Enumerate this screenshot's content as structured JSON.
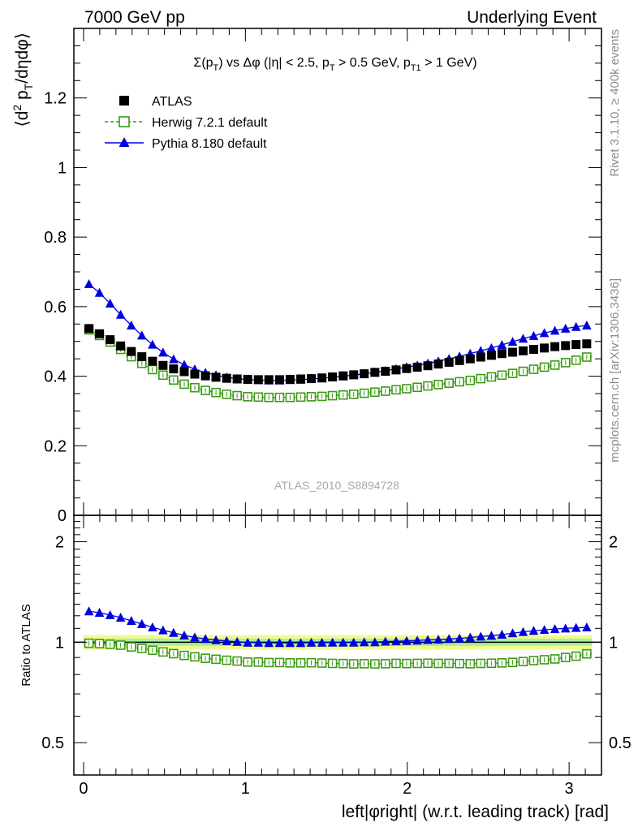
{
  "header": {
    "left": "7000 GeV pp",
    "right": "Underlying Event"
  },
  "side_labels": {
    "rivet": "Rivet 3.1.10, ≥ 400k events",
    "mcplots": "mcplots.cern.ch [arXiv:1306.3436]"
  },
  "watermark": "ATLAS_2010_S8894728",
  "colors": {
    "atlas": "#000000",
    "herwig": "#3a9a14",
    "pythia": "#0000dd",
    "band_outer": "#f2fb8a",
    "band_inner": "#a6f0a2"
  },
  "chart_data": [
    {
      "type": "scatter",
      "panel": "main",
      "title": "Σ(p_T) vs Δφ (|η| < 2.5, p_T > 0.5 GeV, p_T1 > 1 GeV)",
      "xlabel": "left|φright| (w.r.t. leading track) [rad]",
      "ylabel": "⟨d² p_T/dηdφ⟩",
      "xlim": [
        -0.06,
        3.2
      ],
      "ylim": [
        0,
        1.4
      ],
      "yticks": [
        0,
        0.2,
        0.4,
        0.6,
        0.8,
        1,
        1.2
      ],
      "xticks": [
        0,
        1,
        2,
        3
      ],
      "legend_position": "top-left",
      "x": [
        0.033,
        0.098,
        0.164,
        0.229,
        0.295,
        0.36,
        0.426,
        0.491,
        0.556,
        0.622,
        0.687,
        0.753,
        0.818,
        0.884,
        0.949,
        1.014,
        1.08,
        1.145,
        1.211,
        1.276,
        1.342,
        1.407,
        1.473,
        1.538,
        1.604,
        1.669,
        1.734,
        1.8,
        1.865,
        1.931,
        1.996,
        2.062,
        2.127,
        2.192,
        2.258,
        2.323,
        2.389,
        2.454,
        2.52,
        2.585,
        2.651,
        2.716,
        2.781,
        2.847,
        2.912,
        2.978,
        3.043,
        3.109
      ],
      "series": [
        {
          "name": "ATLAS",
          "marker": "square-filled",
          "values": [
            0.537,
            0.522,
            0.505,
            0.487,
            0.471,
            0.456,
            0.443,
            0.431,
            0.421,
            0.413,
            0.406,
            0.401,
            0.397,
            0.394,
            0.392,
            0.391,
            0.39,
            0.39,
            0.39,
            0.391,
            0.392,
            0.393,
            0.395,
            0.398,
            0.401,
            0.404,
            0.407,
            0.411,
            0.414,
            0.418,
            0.422,
            0.426,
            0.43,
            0.435,
            0.44,
            0.445,
            0.45,
            0.455,
            0.46,
            0.465,
            0.469,
            0.473,
            0.477,
            0.481,
            0.485,
            0.488,
            0.491,
            0.493
          ]
        },
        {
          "name": "Herwig 7.2.1 default",
          "marker": "square-open",
          "values": [
            0.533,
            0.517,
            0.498,
            0.477,
            0.456,
            0.437,
            0.419,
            0.403,
            0.389,
            0.377,
            0.367,
            0.359,
            0.353,
            0.348,
            0.344,
            0.341,
            0.34,
            0.339,
            0.339,
            0.339,
            0.34,
            0.341,
            0.342,
            0.344,
            0.346,
            0.348,
            0.351,
            0.354,
            0.357,
            0.361,
            0.364,
            0.368,
            0.372,
            0.376,
            0.38,
            0.384,
            0.388,
            0.393,
            0.398,
            0.403,
            0.408,
            0.414,
            0.42,
            0.426,
            0.432,
            0.439,
            0.446,
            0.455
          ]
        },
        {
          "name": "Pythia 8.180 default",
          "marker": "triangle-filled",
          "values": [
            0.665,
            0.64,
            0.609,
            0.577,
            0.546,
            0.517,
            0.491,
            0.468,
            0.449,
            0.433,
            0.42,
            0.41,
            0.403,
            0.397,
            0.393,
            0.39,
            0.389,
            0.388,
            0.388,
            0.389,
            0.39,
            0.392,
            0.394,
            0.397,
            0.4,
            0.403,
            0.407,
            0.411,
            0.416,
            0.421,
            0.426,
            0.431,
            0.437,
            0.443,
            0.45,
            0.457,
            0.465,
            0.473,
            0.481,
            0.49,
            0.499,
            0.508,
            0.516,
            0.524,
            0.531,
            0.537,
            0.542,
            0.546
          ]
        }
      ]
    },
    {
      "type": "scatter",
      "panel": "ratio",
      "ylabel": "Ratio to ATLAS",
      "xlabel": "left|φright| (w.r.t. leading track) [rad]",
      "xlim": [
        -0.06,
        3.2
      ],
      "ylim": [
        0.4,
        2.4
      ],
      "ylog": true,
      "yticks": [
        0.5,
        1,
        2
      ],
      "xticks": [
        0,
        1,
        2,
        3
      ],
      "x": [
        0.033,
        0.098,
        0.164,
        0.229,
        0.295,
        0.36,
        0.426,
        0.491,
        0.556,
        0.622,
        0.687,
        0.753,
        0.818,
        0.884,
        0.949,
        1.014,
        1.08,
        1.145,
        1.211,
        1.276,
        1.342,
        1.407,
        1.473,
        1.538,
        1.604,
        1.669,
        1.734,
        1.8,
        1.865,
        1.931,
        1.996,
        2.062,
        2.127,
        2.192,
        2.258,
        2.323,
        2.389,
        2.454,
        2.52,
        2.585,
        2.651,
        2.716,
        2.781,
        2.847,
        2.912,
        2.978,
        3.043,
        3.109
      ],
      "reference_band": {
        "inner": 0.025,
        "outer": 0.05
      },
      "series": [
        {
          "name": "Herwig 7.2.1 default",
          "values": [
            0.993,
            0.99,
            0.986,
            0.98,
            0.968,
            0.958,
            0.946,
            0.935,
            0.924,
            0.913,
            0.904,
            0.895,
            0.889,
            0.883,
            0.878,
            0.872,
            0.872,
            0.869,
            0.869,
            0.867,
            0.867,
            0.868,
            0.866,
            0.864,
            0.863,
            0.861,
            0.862,
            0.861,
            0.862,
            0.864,
            0.863,
            0.864,
            0.865,
            0.864,
            0.864,
            0.863,
            0.862,
            0.864,
            0.865,
            0.867,
            0.87,
            0.875,
            0.881,
            0.886,
            0.891,
            0.9,
            0.908,
            0.923
          ]
        },
        {
          "name": "Pythia 8.180 default",
          "values": [
            1.238,
            1.226,
            1.206,
            1.185,
            1.159,
            1.134,
            1.108,
            1.086,
            1.067,
            1.048,
            1.034,
            1.023,
            1.015,
            1.008,
            1.003,
            0.997,
            0.997,
            0.995,
            0.995,
            0.995,
            0.995,
            0.997,
            0.997,
            0.998,
            0.998,
            0.998,
            1.0,
            1.0,
            1.005,
            1.007,
            1.009,
            1.012,
            1.016,
            1.018,
            1.023,
            1.027,
            1.033,
            1.04,
            1.046,
            1.054,
            1.064,
            1.074,
            1.082,
            1.089,
            1.095,
            1.1,
            1.104,
            1.108
          ]
        }
      ]
    }
  ]
}
